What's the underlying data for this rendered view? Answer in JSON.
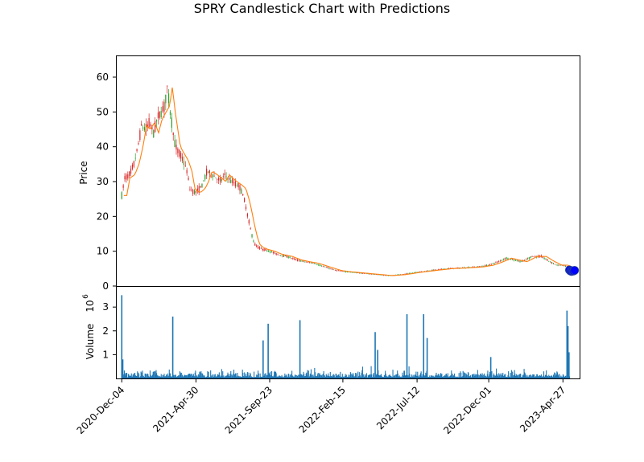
{
  "chart_data": [
    {
      "type": "candlestick",
      "title": "SPRY Candlestick Chart with Predictions",
      "ylabel": "Price",
      "ylim": [
        0,
        66
      ],
      "y_ticks": [
        0,
        10,
        20,
        30,
        40,
        50,
        60
      ],
      "x_tick_labels": [
        "2020-Dec-04",
        "2021-Apr-30",
        "2021-Sep-23",
        "2022-Feb-15",
        "2022-Jul-12",
        "2022-Dec-01",
        "2023-Apr-27"
      ],
      "x_range": [
        "2020-Nov-24",
        "2023-May-30"
      ],
      "grid": false,
      "colors": {
        "up": "#2ca02c",
        "down": "#d62728",
        "trend": "#ff7f0e",
        "prediction": "#0000ff",
        "prediction_edge": "#1f3b9f"
      },
      "price_series": [
        {
          "date": "2020-Dec-04",
          "close": 26
        },
        {
          "date": "2020-Dec-10",
          "close": 31
        },
        {
          "date": "2020-Dec-20",
          "close": 32
        },
        {
          "date": "2020-Dec-28",
          "close": 35
        },
        {
          "date": "2021-Jan-05",
          "close": 40
        },
        {
          "date": "2021-Jan-12",
          "close": 46
        },
        {
          "date": "2021-Jan-20",
          "close": 45
        },
        {
          "date": "2021-Jan-28",
          "close": 47
        },
        {
          "date": "2021-Feb-05",
          "close": 44
        },
        {
          "date": "2021-Feb-12",
          "close": 48
        },
        {
          "date": "2021-Feb-20",
          "close": 50
        },
        {
          "date": "2021-Feb-28",
          "close": 52
        },
        {
          "date": "2021-Mar-03",
          "close": 58
        },
        {
          "date": "2021-Mar-06",
          "close": 55
        },
        {
          "date": "2021-Mar-10",
          "close": 50
        },
        {
          "date": "2021-Mar-15",
          "close": 45
        },
        {
          "date": "2021-Mar-20",
          "close": 40
        },
        {
          "date": "2021-Mar-28",
          "close": 38
        },
        {
          "date": "2021-Apr-05",
          "close": 36
        },
        {
          "date": "2021-Apr-12",
          "close": 33
        },
        {
          "date": "2021-Apr-18",
          "close": 28
        },
        {
          "date": "2021-Apr-25",
          "close": 27
        },
        {
          "date": "2021-Apr-30",
          "close": 27
        },
        {
          "date": "2021-May-08",
          "close": 28
        },
        {
          "date": "2021-May-15",
          "close": 30
        },
        {
          "date": "2021-May-22",
          "close": 33
        },
        {
          "date": "2021-Jun-01",
          "close": 32
        },
        {
          "date": "2021-Jun-10",
          "close": 31
        },
        {
          "date": "2021-Jun-18",
          "close": 30
        },
        {
          "date": "2021-Jun-25",
          "close": 32
        },
        {
          "date": "2021-Jul-02",
          "close": 31
        },
        {
          "date": "2021-Jul-10",
          "close": 30
        },
        {
          "date": "2021-Jul-20",
          "close": 29
        },
        {
          "date": "2021-Jul-28",
          "close": 28
        },
        {
          "date": "2021-Aug-05",
          "close": 24
        },
        {
          "date": "2021-Aug-12",
          "close": 19
        },
        {
          "date": "2021-Aug-18",
          "close": 15
        },
        {
          "date": "2021-Aug-24",
          "close": 12
        },
        {
          "date": "2021-Sep-01",
          "close": 11
        },
        {
          "date": "2021-Sep-10",
          "close": 10.5
        },
        {
          "date": "2021-Sep-23",
          "close": 10
        },
        {
          "date": "2021-Oct-10",
          "close": 9
        },
        {
          "date": "2021-Oct-28",
          "close": 8.5
        },
        {
          "date": "2021-Nov-15",
          "close": 7.5
        },
        {
          "date": "2021-Dec-01",
          "close": 7
        },
        {
          "date": "2021-Dec-20",
          "close": 6.5
        },
        {
          "date": "2022-Jan-10",
          "close": 5.5
        },
        {
          "date": "2022-Feb-01",
          "close": 4.5
        },
        {
          "date": "2022-Feb-15",
          "close": 4.2
        },
        {
          "date": "2022-Mar-15",
          "close": 3.8
        },
        {
          "date": "2022-Apr-15",
          "close": 3.4
        },
        {
          "date": "2022-May-15",
          "close": 3.0
        },
        {
          "date": "2022-Jun-10",
          "close": 3.3
        },
        {
          "date": "2022-Jul-12",
          "close": 4.0
        },
        {
          "date": "2022-Aug-10",
          "close": 4.5
        },
        {
          "date": "2022-Sep-10",
          "close": 5.0
        },
        {
          "date": "2022-Oct-10",
          "close": 5.2
        },
        {
          "date": "2022-Nov-10",
          "close": 5.5
        },
        {
          "date": "2022-Dec-01",
          "close": 6.0
        },
        {
          "date": "2022-Dec-20",
          "close": 7.0
        },
        {
          "date": "2023-Jan-05",
          "close": 8.0
        },
        {
          "date": "2023-Jan-20",
          "close": 7.5
        },
        {
          "date": "2023-Feb-05",
          "close": 7.0
        },
        {
          "date": "2023-Feb-25",
          "close": 8.5
        },
        {
          "date": "2023-Mar-15",
          "close": 8.5
        },
        {
          "date": "2023-Apr-01",
          "close": 7.0
        },
        {
          "date": "2023-Apr-15",
          "close": 6.0
        },
        {
          "date": "2023-Apr-27",
          "close": 6.0
        },
        {
          "date": "2023-May-05",
          "close": 5.5
        },
        {
          "date": "2023-May-10",
          "close": 5.0
        }
      ],
      "predictions": [
        {
          "date": "2023-May-10",
          "value": 4.6
        },
        {
          "date": "2023-May-12",
          "value": 4.3
        },
        {
          "date": "2023-May-14",
          "value": 4.2
        },
        {
          "date": "2023-May-16",
          "value": 4.4
        },
        {
          "date": "2023-May-18",
          "value": 4.3
        },
        {
          "date": "2023-May-20",
          "value": 4.5
        }
      ]
    },
    {
      "type": "bar",
      "ylabel": "Volume",
      "exponent_label": "10",
      "exponent_power": "6",
      "ylim": [
        0,
        3.85
      ],
      "y_ticks": [
        "1",
        "2",
        "3"
      ],
      "bar_color": "#1f77b4",
      "baseline_range": [
        0.05,
        0.35
      ],
      "spikes": [
        {
          "date": "2020-Dec-04",
          "value": 3.5
        },
        {
          "date": "2020-Dec-06",
          "value": 0.8
        },
        {
          "date": "2021-Mar-15",
          "value": 2.6
        },
        {
          "date": "2021-Sep-20",
          "value": 2.3
        },
        {
          "date": "2021-Sep-10",
          "value": 1.6
        },
        {
          "date": "2021-Nov-22",
          "value": 2.45
        },
        {
          "date": "2022-Apr-20",
          "value": 1.95
        },
        {
          "date": "2022-Apr-25",
          "value": 1.2
        },
        {
          "date": "2022-Jun-22",
          "value": 2.7
        },
        {
          "date": "2022-Jul-25",
          "value": 2.7
        },
        {
          "date": "2022-Aug-01",
          "value": 1.7
        },
        {
          "date": "2022-Dec-05",
          "value": 0.9
        },
        {
          "date": "2023-May-05",
          "value": 2.85
        },
        {
          "date": "2023-May-07",
          "value": 2.2
        },
        {
          "date": "2023-May-09",
          "value": 1.1
        }
      ]
    }
  ]
}
